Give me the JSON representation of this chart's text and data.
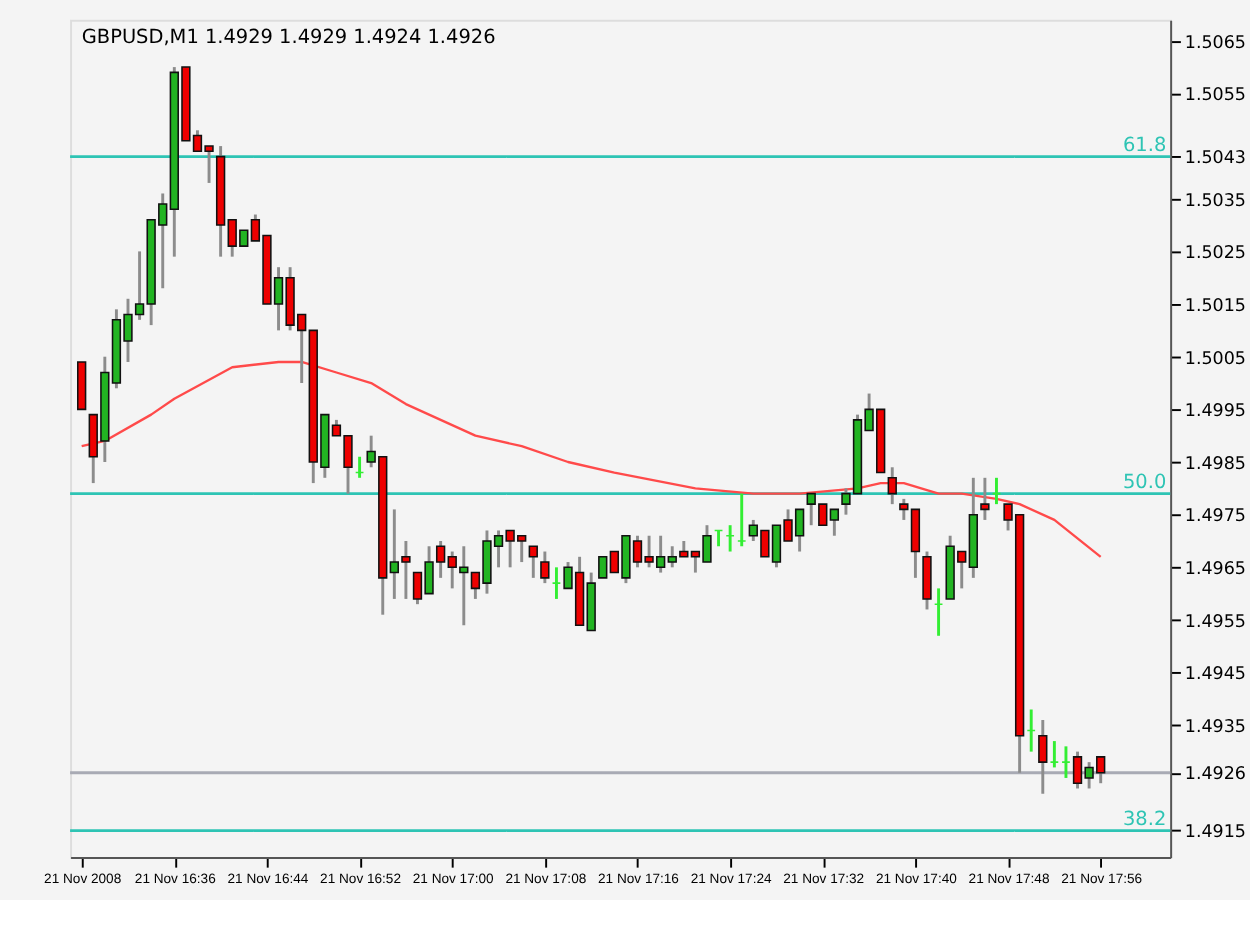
{
  "chart_data": {
    "type": "candlestick",
    "title": "GBPUSD,M1  1.4929 1.4929 1.4924 1.4926",
    "color": "#8c8c8c",
    "colors": [
      "#ee0000",
      "#ee0000",
      "#22b422",
      "#22b422",
      "#22b422",
      "#22b422",
      "#22b422",
      "#22b422",
      "#22b422",
      "#ee0000",
      "#ee0000",
      "#ee0000",
      "#ee0000",
      "#ee0000",
      "#22b422",
      "#ee0000",
      "#ee0000",
      "#22b422",
      "#ee0000",
      "#ee0000",
      "#ee0000",
      "#22b422",
      "#ee0000",
      "#ee0000",
      "#33ee33",
      "#22b422",
      "#ee0000",
      "#22b422",
      "#ee0000",
      "#ee0000",
      "#22b422",
      "#ee0000",
      "#ee0000",
      "#22b422",
      "#ee0000",
      "#22b422",
      "#22b422",
      "#ee0000",
      "#ee0000",
      "#ee0000",
      "#ee0000",
      "#33ee33",
      "#22b422",
      "#ee0000",
      "#22b422",
      "#22b422",
      "#ee0000",
      "#22b422",
      "#ee0000",
      "#ee0000",
      "#22b422",
      "#22b422",
      "#ee0000",
      "#ee0000",
      "#22b422",
      "#33ee33",
      "#33ee33",
      "#33ee33",
      "#22b422",
      "#ee0000",
      "#22b422",
      "#ee0000",
      "#22b422",
      "#22b422",
      "#ee0000",
      "#22b422",
      "#22b422",
      "#22b422",
      "#22b422",
      "#ee0000",
      "#ee0000",
      "#ee0000",
      "#ee0000",
      "#ee0000",
      "#33ee33",
      "#22b422",
      "#ee0000",
      "#22b422",
      "#ee0000",
      "#33ee33",
      "#ee0000",
      "#ee0000",
      "#33ee33",
      "#ee0000",
      "#33ee33",
      "#33ee33",
      "#ee0000",
      "#22b422",
      "#ee0000"
    ],
    "annotations": [
      {
        "text": "61.8",
        "y": 1.5043
      },
      {
        "text": "50.0",
        "y": 1.4979
      },
      {
        "text": "38.2",
        "y": 1.4915
      }
    ],
    "x": [
      "2008-11-21T16:28",
      "2008-11-21T16:29",
      "2008-11-21T16:30",
      "2008-11-21T16:31",
      "2008-11-21T16:32",
      "2008-11-21T16:33",
      "2008-11-21T16:34",
      "2008-11-21T16:35",
      "2008-11-21T16:36",
      "2008-11-21T16:37",
      "2008-11-21T16:38",
      "2008-11-21T16:39",
      "2008-11-21T16:40",
      "2008-11-21T16:41",
      "2008-11-21T16:42",
      "2008-11-21T16:43",
      "2008-11-21T16:44",
      "2008-11-21T16:45",
      "2008-11-21T16:46",
      "2008-11-21T16:47",
      "2008-11-21T16:48",
      "2008-11-21T16:49",
      "2008-11-21T16:50",
      "2008-11-21T16:51",
      "2008-11-21T16:52",
      "2008-11-21T16:53",
      "2008-11-21T16:54",
      "2008-11-21T16:55",
      "2008-11-21T16:56",
      "2008-11-21T16:57",
      "2008-11-21T16:58",
      "2008-11-21T16:59",
      "2008-11-21T17:00",
      "2008-11-21T17:01",
      "2008-11-21T17:02",
      "2008-11-21T17:03",
      "2008-11-21T17:04",
      "2008-11-21T17:05",
      "2008-11-21T17:06",
      "2008-11-21T17:07",
      "2008-11-21T17:08",
      "2008-11-21T17:09",
      "2008-11-21T17:10",
      "2008-11-21T17:11",
      "2008-11-21T17:12",
      "2008-11-21T17:13",
      "2008-11-21T17:14",
      "2008-11-21T17:15",
      "2008-11-21T17:16",
      "2008-11-21T17:17",
      "2008-11-21T17:18",
      "2008-11-21T17:19",
      "2008-11-21T17:20",
      "2008-11-21T17:21",
      "2008-11-21T17:22",
      "2008-11-21T17:23",
      "2008-11-21T17:24",
      "2008-11-21T17:25",
      "2008-11-21T17:26",
      "2008-11-21T17:27",
      "2008-11-21T17:28",
      "2008-11-21T17:29",
      "2008-11-21T17:30",
      "2008-11-21T17:31",
      "2008-11-21T17:32",
      "2008-11-21T17:33",
      "2008-11-21T17:34",
      "2008-11-21T17:35",
      "2008-11-21T17:36",
      "2008-11-21T17:37",
      "2008-11-21T17:38",
      "2008-11-21T17:39",
      "2008-11-21T17:40",
      "2008-11-21T17:41",
      "2008-11-21T17:42",
      "2008-11-21T17:43",
      "2008-11-21T17:44",
      "2008-11-21T17:45",
      "2008-11-21T17:46",
      "2008-11-21T17:47",
      "2008-11-21T17:48",
      "2008-11-21T17:49",
      "2008-11-21T17:50",
      "2008-11-21T17:51",
      "2008-11-21T17:52",
      "2008-11-21T17:53",
      "2008-11-21T17:54",
      "2008-11-21T17:55",
      "2008-11-21T17:56"
    ],
    "ohlc": [
      [
        1.5004,
        1.5004,
        1.4995,
        1.4995
      ],
      [
        1.4994,
        1.4994,
        1.4981,
        1.4986
      ],
      [
        1.4989,
        1.5005,
        1.4985,
        1.5002
      ],
      [
        1.5,
        1.5014,
        1.4999,
        1.5012
      ],
      [
        1.5008,
        1.5016,
        1.5004,
        1.5013
      ],
      [
        1.5013,
        1.5025,
        1.5012,
        1.5015
      ],
      [
        1.5015,
        1.5031,
        1.5011,
        1.5031
      ],
      [
        1.503,
        1.5036,
        1.5018,
        1.5034
      ],
      [
        1.5033,
        1.506,
        1.5024,
        1.5059
      ],
      [
        1.506,
        1.506,
        1.5046,
        1.5046
      ],
      [
        1.5047,
        1.5048,
        1.5044,
        1.5044
      ],
      [
        1.5045,
        1.5045,
        1.5038,
        1.5044
      ],
      [
        1.5043,
        1.5045,
        1.5024,
        1.503
      ],
      [
        1.5031,
        1.5031,
        1.5024,
        1.5026
      ],
      [
        1.5026,
        1.5029,
        1.5026,
        1.5029
      ],
      [
        1.5031,
        1.5032,
        1.5027,
        1.5027
      ],
      [
        1.5028,
        1.5028,
        1.5015,
        1.5015
      ],
      [
        1.5015,
        1.5022,
        1.501,
        1.502
      ],
      [
        1.502,
        1.5022,
        1.501,
        1.5011
      ],
      [
        1.5013,
        1.5013,
        1.5,
        1.501
      ],
      [
        1.501,
        1.501,
        1.4981,
        1.4985
      ],
      [
        1.4984,
        1.4994,
        1.4982,
        1.4994
      ],
      [
        1.4992,
        1.4993,
        1.499,
        1.499
      ],
      [
        1.499,
        1.499,
        1.4979,
        1.4984
      ],
      [
        1.4983,
        1.4986,
        1.4982,
        1.4983
      ],
      [
        1.4985,
        1.499,
        1.4984,
        1.4987
      ],
      [
        1.4986,
        1.4986,
        1.4956,
        1.4963
      ],
      [
        1.4964,
        1.4976,
        1.4959,
        1.4966
      ],
      [
        1.4967,
        1.497,
        1.4959,
        1.4966
      ],
      [
        1.4964,
        1.4964,
        1.4958,
        1.4959
      ],
      [
        1.496,
        1.4969,
        1.496,
        1.4966
      ],
      [
        1.4969,
        1.497,
        1.4963,
        1.4966
      ],
      [
        1.4967,
        1.4968,
        1.4961,
        1.4965
      ],
      [
        1.4964,
        1.4969,
        1.4954,
        1.4965
      ],
      [
        1.4964,
        1.4964,
        1.4959,
        1.4961
      ],
      [
        1.4962,
        1.4972,
        1.496,
        1.497
      ],
      [
        1.4969,
        1.4972,
        1.4965,
        1.4971
      ],
      [
        1.4972,
        1.4972,
        1.4965,
        1.497
      ],
      [
        1.4971,
        1.4971,
        1.4966,
        1.497
      ],
      [
        1.4969,
        1.4969,
        1.4963,
        1.4967
      ],
      [
        1.4966,
        1.4968,
        1.4962,
        1.4963
      ],
      [
        1.4962,
        1.4965,
        1.4959,
        1.4962
      ],
      [
        1.4961,
        1.4966,
        1.4961,
        1.4965
      ],
      [
        1.4964,
        1.4967,
        1.4954,
        1.4954
      ],
      [
        1.4953,
        1.4964,
        1.4953,
        1.4962
      ],
      [
        1.4963,
        1.4967,
        1.4963,
        1.4967
      ],
      [
        1.4968,
        1.4968,
        1.4964,
        1.4964
      ],
      [
        1.4963,
        1.4971,
        1.4962,
        1.4971
      ],
      [
        1.497,
        1.4971,
        1.4965,
        1.4966
      ],
      [
        1.4967,
        1.4971,
        1.4965,
        1.4966
      ],
      [
        1.4965,
        1.4971,
        1.4964,
        1.4967
      ],
      [
        1.4966,
        1.4969,
        1.4965,
        1.4967
      ],
      [
        1.4968,
        1.497,
        1.4967,
        1.4967
      ],
      [
        1.4968,
        1.4968,
        1.4964,
        1.4967
      ],
      [
        1.4966,
        1.4973,
        1.4966,
        1.4971
      ],
      [
        1.4972,
        1.4972,
        1.4969,
        1.4972
      ],
      [
        1.4971,
        1.4973,
        1.4968,
        1.4971
      ],
      [
        1.497,
        1.4979,
        1.4969,
        1.497
      ],
      [
        1.4971,
        1.4974,
        1.497,
        1.4973
      ],
      [
        1.4972,
        1.4972,
        1.4967,
        1.4967
      ],
      [
        1.4966,
        1.4973,
        1.4965,
        1.4973
      ],
      [
        1.4974,
        1.4976,
        1.497,
        1.497
      ],
      [
        1.4971,
        1.4976,
        1.4968,
        1.4976
      ],
      [
        1.4977,
        1.4979,
        1.4973,
        1.4979
      ],
      [
        1.4977,
        1.4977,
        1.4973,
        1.4973
      ],
      [
        1.4974,
        1.4976,
        1.4971,
        1.4976
      ],
      [
        1.4977,
        1.498,
        1.4975,
        1.4979
      ],
      [
        1.4979,
        1.4994,
        1.4979,
        1.4993
      ],
      [
        1.4991,
        1.4998,
        1.4991,
        1.4995
      ],
      [
        1.4995,
        1.4995,
        1.4983,
        1.4983
      ],
      [
        1.4982,
        1.4984,
        1.4977,
        1.4979
      ],
      [
        1.4977,
        1.4978,
        1.4974,
        1.4976
      ],
      [
        1.4976,
        1.4976,
        1.4963,
        1.4968
      ],
      [
        1.4967,
        1.4968,
        1.4957,
        1.4959
      ],
      [
        1.4958,
        1.4961,
        1.4952,
        1.4958
      ],
      [
        1.4959,
        1.4971,
        1.4959,
        1.4969
      ],
      [
        1.4968,
        1.4968,
        1.4961,
        1.4966
      ],
      [
        1.4965,
        1.4982,
        1.4963,
        1.4975
      ],
      [
        1.4977,
        1.4982,
        1.4974,
        1.4976
      ],
      [
        1.4979,
        1.4982,
        1.4977,
        1.4979
      ],
      [
        1.4977,
        1.4977,
        1.4972,
        1.4974
      ],
      [
        1.4975,
        1.4975,
        1.4926,
        1.4933
      ],
      [
        1.4934,
        1.4938,
        1.493,
        1.4934
      ],
      [
        1.4933,
        1.4936,
        1.4922,
        1.4928
      ],
      [
        1.4928,
        1.4932,
        1.4927,
        1.4928
      ],
      [
        1.4928,
        1.4931,
        1.4925,
        1.4928
      ],
      [
        1.4929,
        1.493,
        1.4923,
        1.4924
      ],
      [
        1.4925,
        1.4928,
        1.4923,
        1.4927
      ],
      [
        1.4929,
        1.4929,
        1.4924,
        1.4926
      ]
    ],
    "series": [
      {
        "type": "line",
        "color": "#ff4a4a",
        "x": [
          "2008-11-21T16:28",
          "2008-11-21T16:30",
          "2008-11-21T16:34",
          "2008-11-21T16:36",
          "2008-11-21T16:41",
          "2008-11-21T16:45",
          "2008-11-21T16:47",
          "2008-11-21T16:50",
          "2008-11-21T16:53",
          "2008-11-21T16:56",
          "2008-11-21T17:01",
          "2008-11-21T17:02",
          "2008-11-21T17:06",
          "2008-11-21T17:10",
          "2008-11-21T17:14",
          "2008-11-21T17:21",
          "2008-11-21T17:26",
          "2008-11-21T17:30",
          "2008-11-21T17:35",
          "2008-11-21T17:37",
          "2008-11-21T17:39",
          "2008-11-21T17:42",
          "2008-11-21T17:44",
          "2008-11-21T17:47",
          "2008-11-21T17:49",
          "2008-11-21T17:52",
          "2008-11-21T17:56"
        ],
        "values": [
          1.4988,
          1.4989,
          1.4994,
          1.4997,
          1.5003,
          1.5004,
          1.5004,
          1.5002,
          1.5,
          1.4996,
          1.4991,
          1.499,
          1.4988,
          1.4985,
          1.4983,
          1.498,
          1.4979,
          1.4979,
          1.498,
          1.4981,
          1.4981,
          1.4979,
          1.4979,
          1.4978,
          1.4977,
          1.4974,
          1.4967
        ]
      }
    ],
    "ref_lines": [
      {
        "axis": "y",
        "value": 1.5043,
        "color": "#2ec4b4"
      },
      {
        "axis": "y",
        "value": 1.4979,
        "color": "#2ec4b4"
      },
      {
        "axis": "y",
        "value": 1.4915,
        "color": "#2ec4b4"
      },
      {
        "axis": "y",
        "value": 1.4926,
        "color": "#a8aab4"
      }
    ],
    "xlim": [
      "2008-11-21T16:27",
      "2008-11-21T18:02"
    ],
    "xticks": [
      {
        "value": "2008-11-21T16:28",
        "label": "21 Nov 2008"
      },
      {
        "value": "2008-11-21T16:36",
        "label": "21 Nov 16:36"
      },
      {
        "value": "2008-11-21T16:44",
        "label": "21 Nov 16:44"
      },
      {
        "value": "2008-11-21T16:52",
        "label": "21 Nov 16:52"
      },
      {
        "value": "2008-11-21T17:00",
        "label": "21 Nov 17:00"
      },
      {
        "value": "2008-11-21T17:08",
        "label": "21 Nov 17:08"
      },
      {
        "value": "2008-11-21T17:16",
        "label": "21 Nov 17:16"
      },
      {
        "value": "2008-11-21T17:24",
        "label": "21 Nov 17:24"
      },
      {
        "value": "2008-11-21T17:32",
        "label": "21 Nov 17:32"
      },
      {
        "value": "2008-11-21T17:40",
        "label": "21 Nov 17:40"
      },
      {
        "value": "2008-11-21T17:48",
        "label": "21 Nov 17:48"
      },
      {
        "value": "2008-11-21T17:56",
        "label": "21 Nov 17:56"
      }
    ],
    "ylim": [
      1.491,
      1.5069
    ],
    "yticks": [
      1.5065,
      1.5055,
      1.5043,
      1.5035,
      1.5025,
      1.5015,
      1.5005,
      1.4995,
      1.4985,
      1.4975,
      1.4965,
      1.4955,
      1.4945,
      1.4935,
      1.4926,
      1.4915
    ],
    "grid": false
  }
}
